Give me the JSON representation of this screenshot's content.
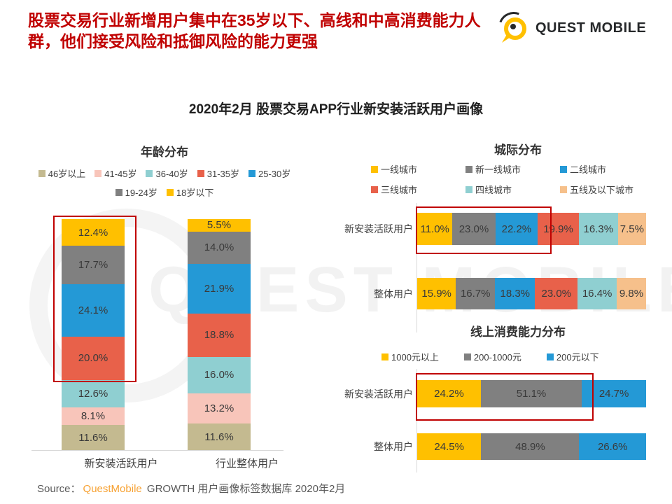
{
  "page": {
    "title": "股票交易行业新增用户集中在35岁以下、高线和中高消费能力人群，他们接受风险和抵御风险的能力更强",
    "subtitle": "2020年2月 股票交易APP行业新安装活跃用户画像",
    "logo_text": "QUEST MOBILE",
    "watermark": "QUEST MOBILE",
    "source": {
      "prefix": "Source：",
      "brand": "QuestMobile",
      "rest": " GROWTH 用户画像标签数据库 2020年2月"
    }
  },
  "colors": {
    "title_red": "#C00000",
    "highlight_box": "#C00000",
    "brand_orange": "#F7A233",
    "brand_yellow": "#FFC000",
    "axis_gray": "#D9D9D9",
    "label_gray": "#404040"
  },
  "chart_data": [
    {
      "type": "bar",
      "stacked": true,
      "orientation": "vertical",
      "title": "年龄分布",
      "unit": "%",
      "categories": [
        "新安装活跃用户",
        "行业整体用户"
      ],
      "legend": [
        "46岁以上",
        "41-45岁",
        "36-40岁",
        "31-35岁",
        "25-30岁",
        "19-24岁",
        "18岁以下"
      ],
      "series": [
        {
          "name": "18岁以下",
          "color": "#FFC000",
          "values": [
            12.4,
            5.5
          ]
        },
        {
          "name": "19-24岁",
          "color": "#808080",
          "values": [
            17.7,
            14.0
          ]
        },
        {
          "name": "25-30岁",
          "color": "#2499D6",
          "values": [
            24.1,
            21.9
          ]
        },
        {
          "name": "31-35岁",
          "color": "#E8614A",
          "values": [
            20.0,
            18.8
          ]
        },
        {
          "name": "36-40岁",
          "color": "#8FCFD1",
          "values": [
            12.6,
            16.0
          ]
        },
        {
          "name": "41-45岁",
          "color": "#F8C5BA",
          "values": [
            8.1,
            13.2
          ]
        },
        {
          "name": "46岁以上",
          "color": "#C4BA90",
          "values": [
            11.6,
            11.6
          ]
        }
      ]
    },
    {
      "type": "bar",
      "stacked": true,
      "orientation": "horizontal",
      "title": "城际分布",
      "unit": "%",
      "categories": [
        "新安装活跃用户",
        "整体用户"
      ],
      "legend": [
        "一线城市",
        "新一线城市",
        "二线城市",
        "三线城市",
        "四线城市",
        "五线及以下城市"
      ],
      "series": [
        {
          "name": "一线城市",
          "color": "#FFC000",
          "values": [
            11.0,
            15.9
          ]
        },
        {
          "name": "新一线城市",
          "color": "#808080",
          "values": [
            23.0,
            16.7
          ]
        },
        {
          "name": "二线城市",
          "color": "#2499D6",
          "values": [
            22.2,
            18.3
          ]
        },
        {
          "name": "三线城市",
          "color": "#E8614A",
          "values": [
            19.9,
            23.0
          ]
        },
        {
          "name": "四线城市",
          "color": "#8FCFD1",
          "values": [
            16.3,
            16.4
          ]
        },
        {
          "name": "五线及以下城市",
          "color": "#F6C08B",
          "values": [
            7.5,
            9.8
          ]
        }
      ]
    },
    {
      "type": "bar",
      "stacked": true,
      "orientation": "horizontal",
      "title": "线上消费能力分布",
      "unit": "%",
      "categories": [
        "新安装活跃用户",
        "整体用户"
      ],
      "legend": [
        "1000元以上",
        "200-1000元",
        "200元以下"
      ],
      "series": [
        {
          "name": "1000元以上",
          "color": "#FFC000",
          "values": [
            24.2,
            24.5
          ]
        },
        {
          "name": "200-1000元",
          "color": "#808080",
          "values": [
            51.1,
            48.9
          ]
        },
        {
          "name": "200元以下",
          "color": "#2499D6",
          "values": [
            24.7,
            26.6
          ]
        }
      ]
    }
  ]
}
